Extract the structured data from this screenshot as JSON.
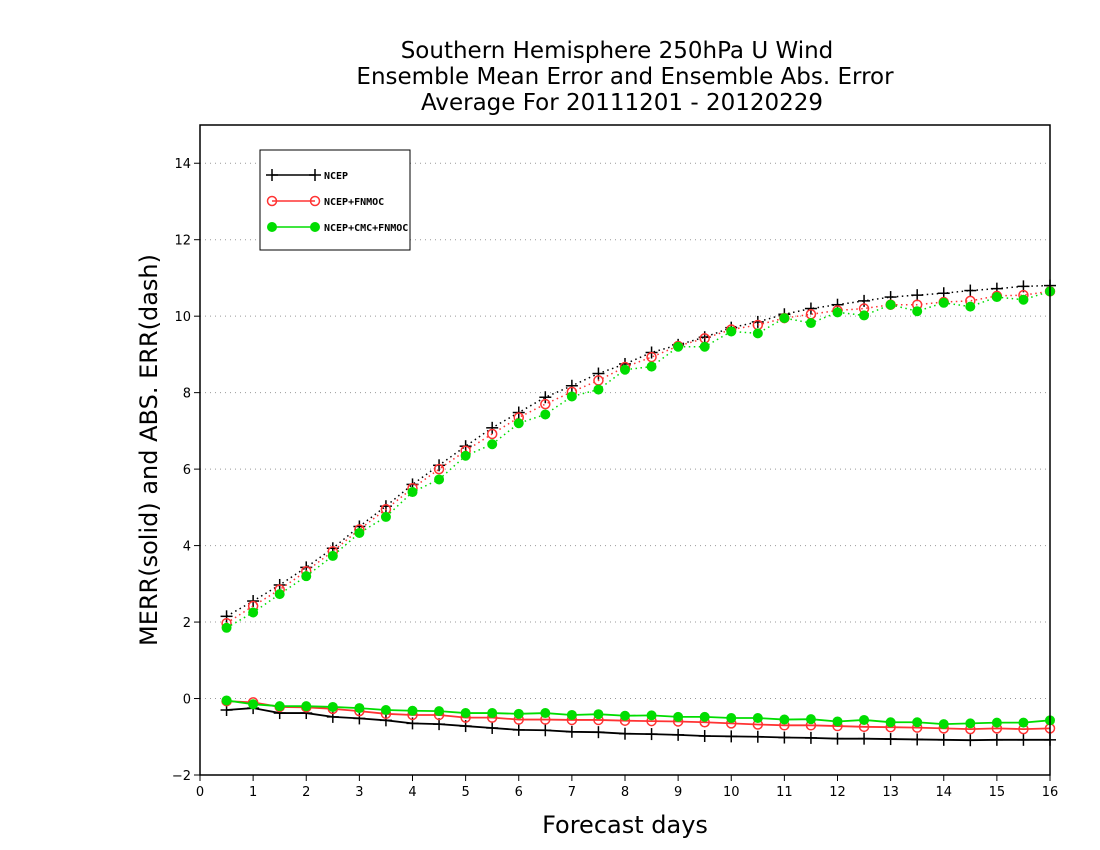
{
  "chart_data": {
    "type": "line",
    "title": [
      "Southern Hemisphere 250hPa U Wind",
      "Ensemble Mean Error and Ensemble Abs. Error",
      "Average For 20111201 - 20120229"
    ],
    "xlabel": "Forecast days",
    "ylabel": "MERR(solid) and ABS. ERR(dash)",
    "xlim": [
      0,
      16
    ],
    "ylim": [
      -2,
      15
    ],
    "x_ticks": [
      0,
      1,
      2,
      3,
      4,
      5,
      6,
      7,
      8,
      9,
      10,
      11,
      12,
      13,
      14,
      15,
      16
    ],
    "y_ticks": [
      -2,
      0,
      2,
      4,
      6,
      8,
      10,
      12,
      14
    ],
    "y_tick_labels": [
      "−2",
      "0",
      "2",
      "4",
      "6",
      "8",
      "10",
      "12",
      "14"
    ],
    "grid": "horizontal dotted",
    "legend_position": "top-left",
    "x": [
      0.5,
      1,
      1.5,
      2,
      2.5,
      3,
      3.5,
      4,
      4.5,
      5,
      5.5,
      6,
      6.5,
      7,
      7.5,
      8,
      8.5,
      9,
      9.5,
      10,
      10.5,
      11,
      11.5,
      12,
      12.5,
      13,
      13.5,
      14,
      14.5,
      15,
      15.5,
      16
    ],
    "series": [
      {
        "name": "NCEP",
        "color": "#000000",
        "marker": "plus",
        "merr": [
          -0.3,
          -0.25,
          -0.38,
          -0.38,
          -0.48,
          -0.52,
          -0.57,
          -0.65,
          -0.67,
          -0.72,
          -0.77,
          -0.82,
          -0.83,
          -0.87,
          -0.88,
          -0.92,
          -0.93,
          -0.95,
          -0.98,
          -0.99,
          -1.0,
          -1.02,
          -1.03,
          -1.05,
          -1.05,
          -1.06,
          -1.07,
          -1.08,
          -1.09,
          -1.08,
          -1.08,
          -1.08
        ],
        "abs_err": [
          2.15,
          2.55,
          2.97,
          3.43,
          3.93,
          4.5,
          5.03,
          5.6,
          6.1,
          6.6,
          7.08,
          7.48,
          7.88,
          8.18,
          8.5,
          8.75,
          9.05,
          9.25,
          9.45,
          9.7,
          9.85,
          10.05,
          10.2,
          10.3,
          10.4,
          10.5,
          10.55,
          10.6,
          10.67,
          10.72,
          10.78,
          10.8
        ]
      },
      {
        "name": "NCEP+FNMOC",
        "color": "#ff3333",
        "marker": "open-circle",
        "merr": [
          -0.07,
          -0.1,
          -0.22,
          -0.23,
          -0.27,
          -0.33,
          -0.4,
          -0.43,
          -0.43,
          -0.5,
          -0.5,
          -0.55,
          -0.55,
          -0.56,
          -0.56,
          -0.58,
          -0.59,
          -0.6,
          -0.62,
          -0.65,
          -0.68,
          -0.7,
          -0.7,
          -0.72,
          -0.74,
          -0.75,
          -0.76,
          -0.78,
          -0.8,
          -0.78,
          -0.8,
          -0.78
        ],
        "abs_err": [
          1.97,
          2.42,
          2.85,
          3.33,
          3.85,
          4.42,
          4.95,
          5.5,
          6.0,
          6.48,
          6.92,
          7.35,
          7.7,
          8.02,
          8.32,
          8.67,
          8.93,
          9.22,
          9.42,
          9.65,
          9.77,
          9.95,
          10.05,
          10.15,
          10.2,
          10.3,
          10.3,
          10.37,
          10.4,
          10.53,
          10.55,
          10.65
        ]
      },
      {
        "name": "NCEP+CMC+FNMOC",
        "color": "#00dd00",
        "marker": "filled-circle",
        "merr": [
          -0.05,
          -0.15,
          -0.2,
          -0.2,
          -0.22,
          -0.25,
          -0.3,
          -0.32,
          -0.33,
          -0.38,
          -0.38,
          -0.4,
          -0.38,
          -0.43,
          -0.41,
          -0.45,
          -0.44,
          -0.48,
          -0.48,
          -0.51,
          -0.51,
          -0.55,
          -0.54,
          -0.6,
          -0.56,
          -0.62,
          -0.62,
          -0.67,
          -0.65,
          -0.63,
          -0.63,
          -0.57
        ],
        "abs_err": [
          1.85,
          2.25,
          2.73,
          3.2,
          3.73,
          4.33,
          4.75,
          5.4,
          5.73,
          6.35,
          6.65,
          7.2,
          7.43,
          7.9,
          8.08,
          8.6,
          8.68,
          9.2,
          9.2,
          9.6,
          9.55,
          9.95,
          9.82,
          10.1,
          10.02,
          10.3,
          10.13,
          10.35,
          10.25,
          10.5,
          10.43,
          10.65
        ]
      }
    ]
  }
}
